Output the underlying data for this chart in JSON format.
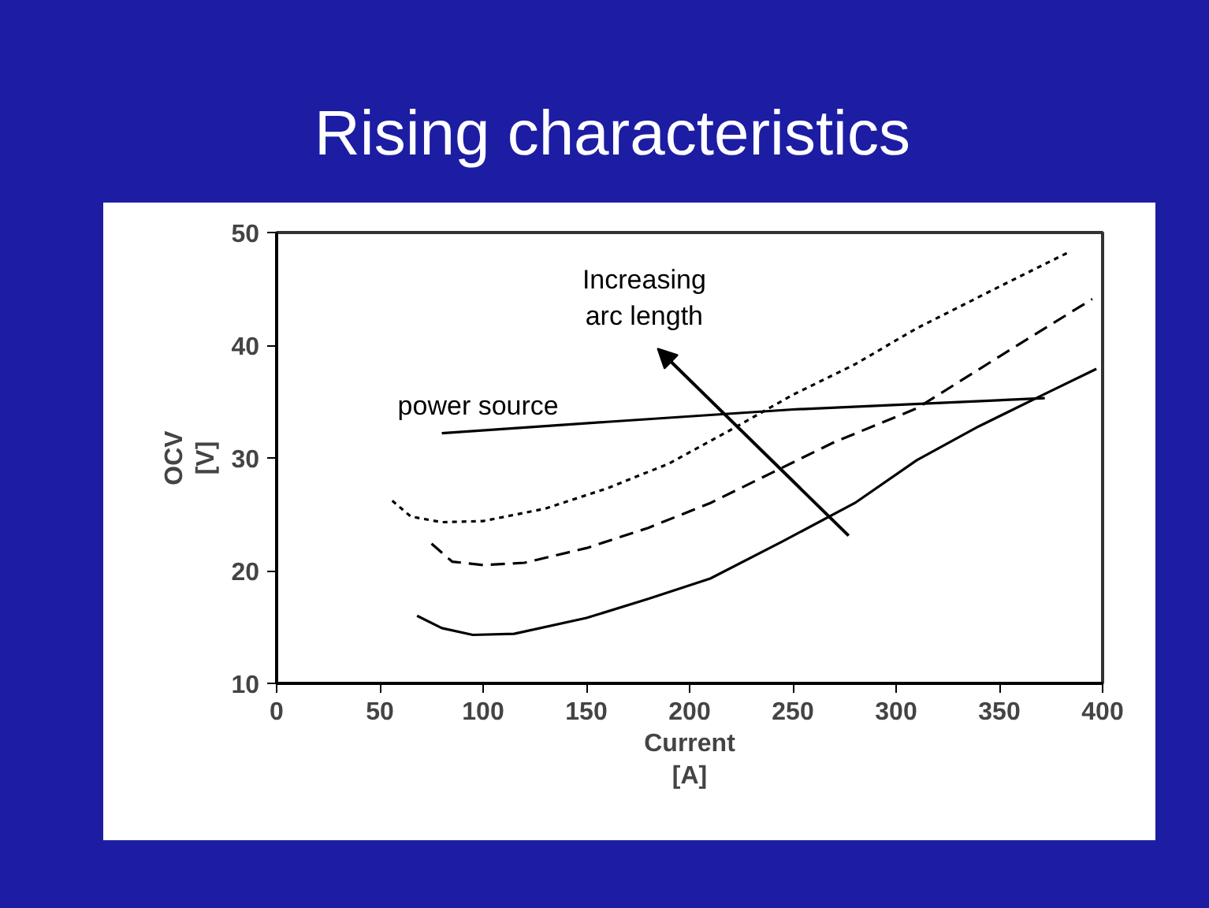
{
  "chart_data": {
    "type": "line",
    "title": "Rising characteristics",
    "xlabel": "Current\n[A]",
    "ylabel": "OCV\n[V]",
    "annotations": [
      "Increasing\narc length"
    ],
    "xlim": [
      0,
      400
    ],
    "xticks": [
      0,
      50,
      100,
      150,
      200,
      250,
      300,
      350,
      400
    ],
    "ylim": [
      10,
      50
    ],
    "yticks": [
      10,
      20,
      30,
      40,
      50
    ],
    "grid": false,
    "legend": false,
    "marker": "none",
    "series": [
      {
        "x": [
          68,
          80,
          95,
          115,
          150,
          180,
          210,
          245,
          280,
          310,
          340,
          370,
          397
        ],
        "values": [
          16.0,
          14.9,
          14.3,
          14.4,
          15.8,
          17.5,
          19.3,
          22.6,
          26.0,
          29.8,
          32.8,
          35.5,
          37.9
        ],
        "color": "#000000",
        "line_style": "solid"
      },
      {
        "x": [
          75,
          85,
          100,
          120,
          150,
          180,
          210,
          240,
          270,
          310,
          350,
          395
        ],
        "values": [
          22.4,
          20.8,
          20.5,
          20.7,
          22.0,
          23.8,
          26.0,
          28.7,
          31.4,
          34.4,
          39.0,
          44.1
        ],
        "color": "#000000",
        "line_style": "dashed"
      },
      {
        "x": [
          56,
          65,
          80,
          100,
          130,
          160,
          190,
          220,
          250,
          280,
          310,
          350,
          383
        ],
        "values": [
          26.2,
          24.8,
          24.3,
          24.4,
          25.5,
          27.3,
          29.5,
          32.5,
          35.6,
          38.3,
          41.5,
          45.2,
          48.2
        ],
        "color": "#000000",
        "line_style": "dotted"
      },
      {
        "name": "power source",
        "x": [
          80,
          160,
          250,
          372
        ],
        "values": [
          32.2,
          33.2,
          34.3,
          35.3
        ],
        "color": "#000000",
        "line_style": "solid"
      }
    ]
  }
}
